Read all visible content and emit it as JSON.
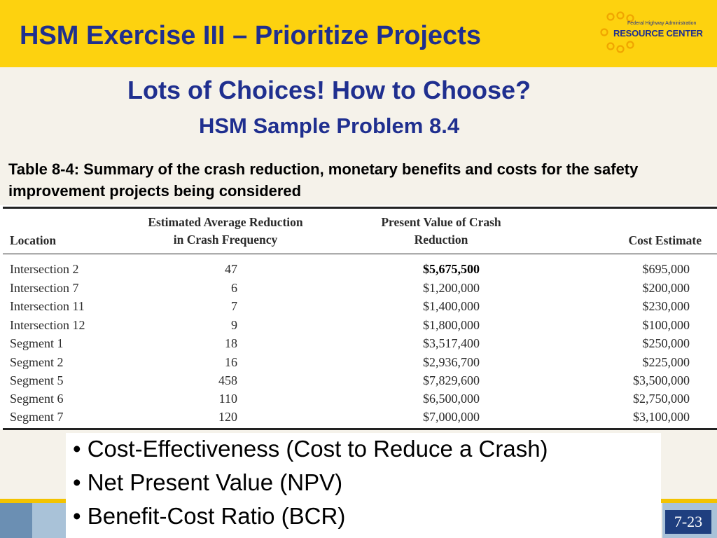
{
  "header": {
    "title": "HSM Exercise III – Prioritize Projects",
    "logo": {
      "agency": "Federal Highway Administration",
      "name": "RESOURCE CENTER",
      "icon": "circles-logo-icon"
    }
  },
  "heading": {
    "title": "Lots of Choices! How to Choose?",
    "subtitle": "HSM Sample Problem 8.4"
  },
  "caption": "Table 8-4: Summary of the crash reduction, monetary benefits and costs for the safety improvement projects being considered",
  "table": {
    "headers": {
      "location": "Location",
      "reduction_line1": "Estimated Average Reduction",
      "reduction_line2": "in Crash Frequency",
      "pv_line1": "Present Value of Crash",
      "pv_line2": "Reduction",
      "cost": "Cost Estimate"
    },
    "rows": [
      {
        "location": "Intersection 2",
        "reduction": "47",
        "pv": "$5,675,500",
        "cost": "$695,000"
      },
      {
        "location": "Intersection 7",
        "reduction": "6",
        "pv": "$1,200,000",
        "cost": "$200,000"
      },
      {
        "location": "Intersection 11",
        "reduction": "7",
        "pv": "$1,400,000",
        "cost": "$230,000"
      },
      {
        "location": "Intersection 12",
        "reduction": "9",
        "pv": "$1,800,000",
        "cost": "$100,000"
      },
      {
        "location": "Segment 1",
        "reduction": "18",
        "pv": "$3,517,400",
        "cost": "$250,000"
      },
      {
        "location": "Segment 2",
        "reduction": "16",
        "pv": "$2,936,700",
        "cost": "$225,000"
      },
      {
        "location": "Segment 5",
        "reduction": "458",
        "pv": "$7,829,600",
        "cost": "$3,500,000"
      },
      {
        "location": "Segment 6",
        "reduction": "110",
        "pv": "$6,500,000",
        "cost": "$2,750,000"
      },
      {
        "location": "Segment 7",
        "reduction": "120",
        "pv": "$7,000,000",
        "cost": "$3,100,000"
      }
    ]
  },
  "bullets": [
    "• Cost-Effectiveness (Cost to Reduce a Crash)",
    "• Net Present Value (NPV)",
    "• Benefit-Cost Ratio (BCR)"
  ],
  "page_number": "7-23",
  "colors": {
    "header_bg": "#fdd20f",
    "title_blue": "#1f2f8f",
    "page_badge": "#1f3f7f"
  }
}
